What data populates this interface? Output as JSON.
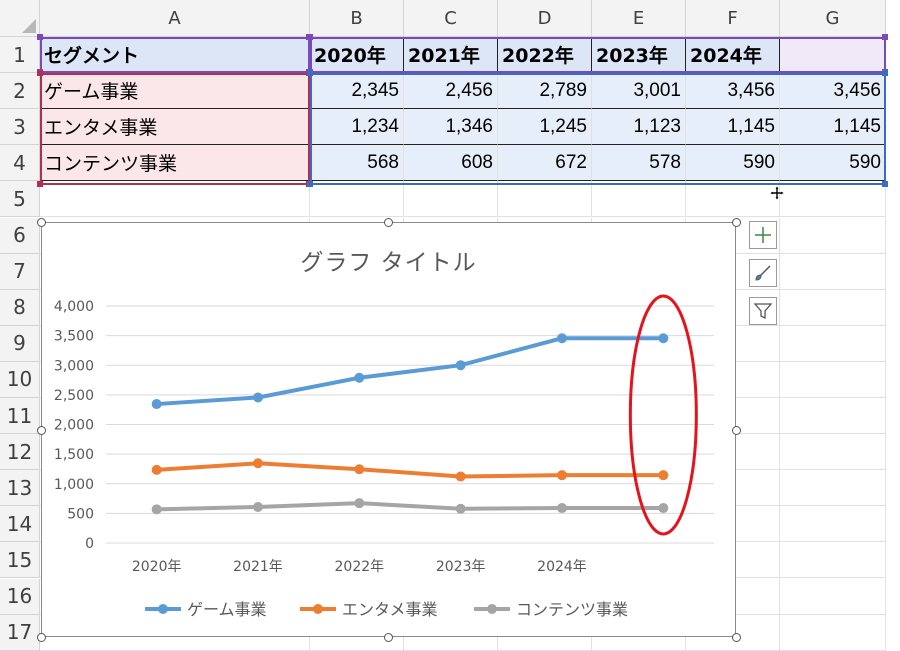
{
  "columns": [
    "A",
    "B",
    "C",
    "D",
    "E",
    "F",
    "G"
  ],
  "rows": [
    "1",
    "2",
    "3",
    "4",
    "5",
    "6",
    "7",
    "8",
    "9",
    "10",
    "11",
    "12",
    "13",
    "14",
    "15",
    "16",
    "17"
  ],
  "table": {
    "header": [
      "セグメント",
      "2020年",
      "2021年",
      "2022年",
      "2023年",
      "2024年",
      ""
    ],
    "body": [
      [
        "ゲーム事業",
        "2,345",
        "2,456",
        "2,789",
        "3,001",
        "3,456",
        "3,456"
      ],
      [
        "エンタメ事業",
        "1,234",
        "1,346",
        "1,245",
        "1,123",
        "1,145",
        "1,145"
      ],
      [
        "コンテンツ事業",
        "568",
        "608",
        "672",
        "578",
        "590",
        "590"
      ]
    ]
  },
  "chart_buttons": [
    {
      "icon": "plus-icon",
      "label": "chart-elements"
    },
    {
      "icon": "brush-icon",
      "label": "chart-styles"
    },
    {
      "icon": "funnel-icon",
      "label": "chart-filters"
    }
  ],
  "colors": {
    "game": "#5b9bd5",
    "entertainment": "#ed7d31",
    "content": "#a5a5a5",
    "annotation": "#e3141c"
  },
  "chart_data": {
    "type": "line",
    "title": "グラフ タイトル",
    "categories": [
      "2020年",
      "2021年",
      "2022年",
      "2023年",
      "2024年",
      ""
    ],
    "series": [
      {
        "name": "ゲーム事業",
        "values": [
          2345,
          2456,
          2789,
          3001,
          3456,
          3456
        ]
      },
      {
        "name": "エンタメ事業",
        "values": [
          1234,
          1346,
          1245,
          1123,
          1145,
          1145
        ]
      },
      {
        "name": "コンテンツ事業",
        "values": [
          568,
          608,
          672,
          578,
          590,
          590
        ]
      }
    ],
    "ylim": [
      0,
      4000
    ],
    "yticks": [
      "0",
      "500",
      "1,000",
      "1,500",
      "2,000",
      "2,500",
      "3,000",
      "3,500",
      "4,000"
    ],
    "grid": true,
    "legend": "bottom",
    "annotation": "red-ellipse-around-last-category"
  }
}
